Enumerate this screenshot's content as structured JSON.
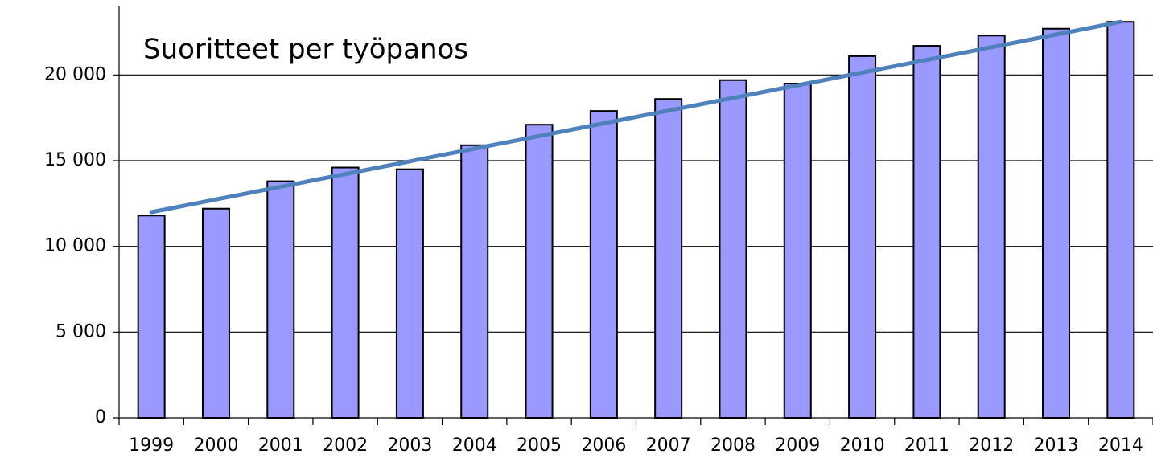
{
  "chart_data": {
    "type": "bar",
    "title": "Suoritteet per työpanos",
    "categories": [
      "1999",
      "2000",
      "2001",
      "2002",
      "2003",
      "2004",
      "2005",
      "2006",
      "2007",
      "2008",
      "2009",
      "2010",
      "2011",
      "2012",
      "2013",
      "2014"
    ],
    "values": [
      11800,
      12200,
      13800,
      14600,
      14500,
      15900,
      17100,
      17900,
      18600,
      19700,
      19500,
      21100,
      21700,
      22300,
      22700,
      23100
    ],
    "color": "#9999ff",
    "trend": {
      "color": "#4f81bd",
      "values": [
        12000,
        12740,
        13480,
        14220,
        14960,
        15700,
        16440,
        17180,
        17920,
        18660,
        19400,
        20140,
        20880,
        21620,
        22360,
        23100
      ]
    },
    "ylim": [
      0,
      24000
    ],
    "yticks": [
      0,
      {
        "value": 5000,
        "label": "5 000"
      },
      {
        "value": 10000,
        "label": "10 000"
      },
      {
        "value": 15000,
        "label": "15 000"
      },
      {
        "value": 20000,
        "label": "20 000"
      }
    ],
    "grid": true
  }
}
